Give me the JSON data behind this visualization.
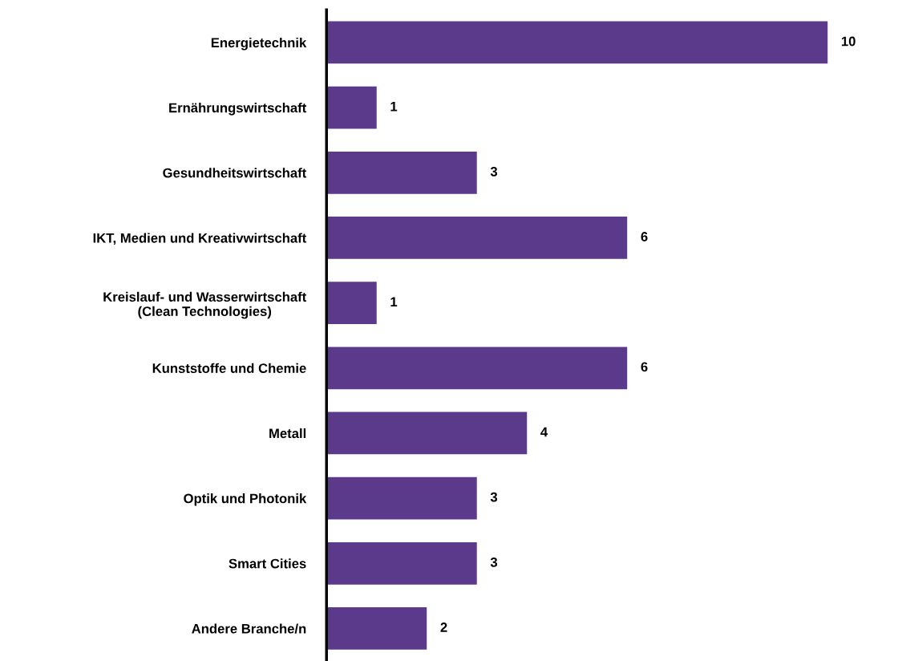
{
  "chart_data": {
    "type": "bar",
    "orientation": "horizontal",
    "categories": [
      "Energietechnik",
      "Ernährungswirtschaft",
      "Gesundheitswirtschaft",
      "IKT, Medien und Kreativwirtschaft",
      "Kreislauf- und Wasserwirtschaft\n(Clean Technologies)",
      "Kunststoffe und Chemie",
      "Metall",
      "Optik und Photonik",
      "Smart Cities",
      "Andere Branche/n"
    ],
    "values": [
      10,
      1,
      3,
      6,
      1,
      6,
      4,
      3,
      3,
      2
    ],
    "color": "#5b3a8b",
    "data_labels": true,
    "tick_labels": "y",
    "grid": false,
    "legend": false
  }
}
